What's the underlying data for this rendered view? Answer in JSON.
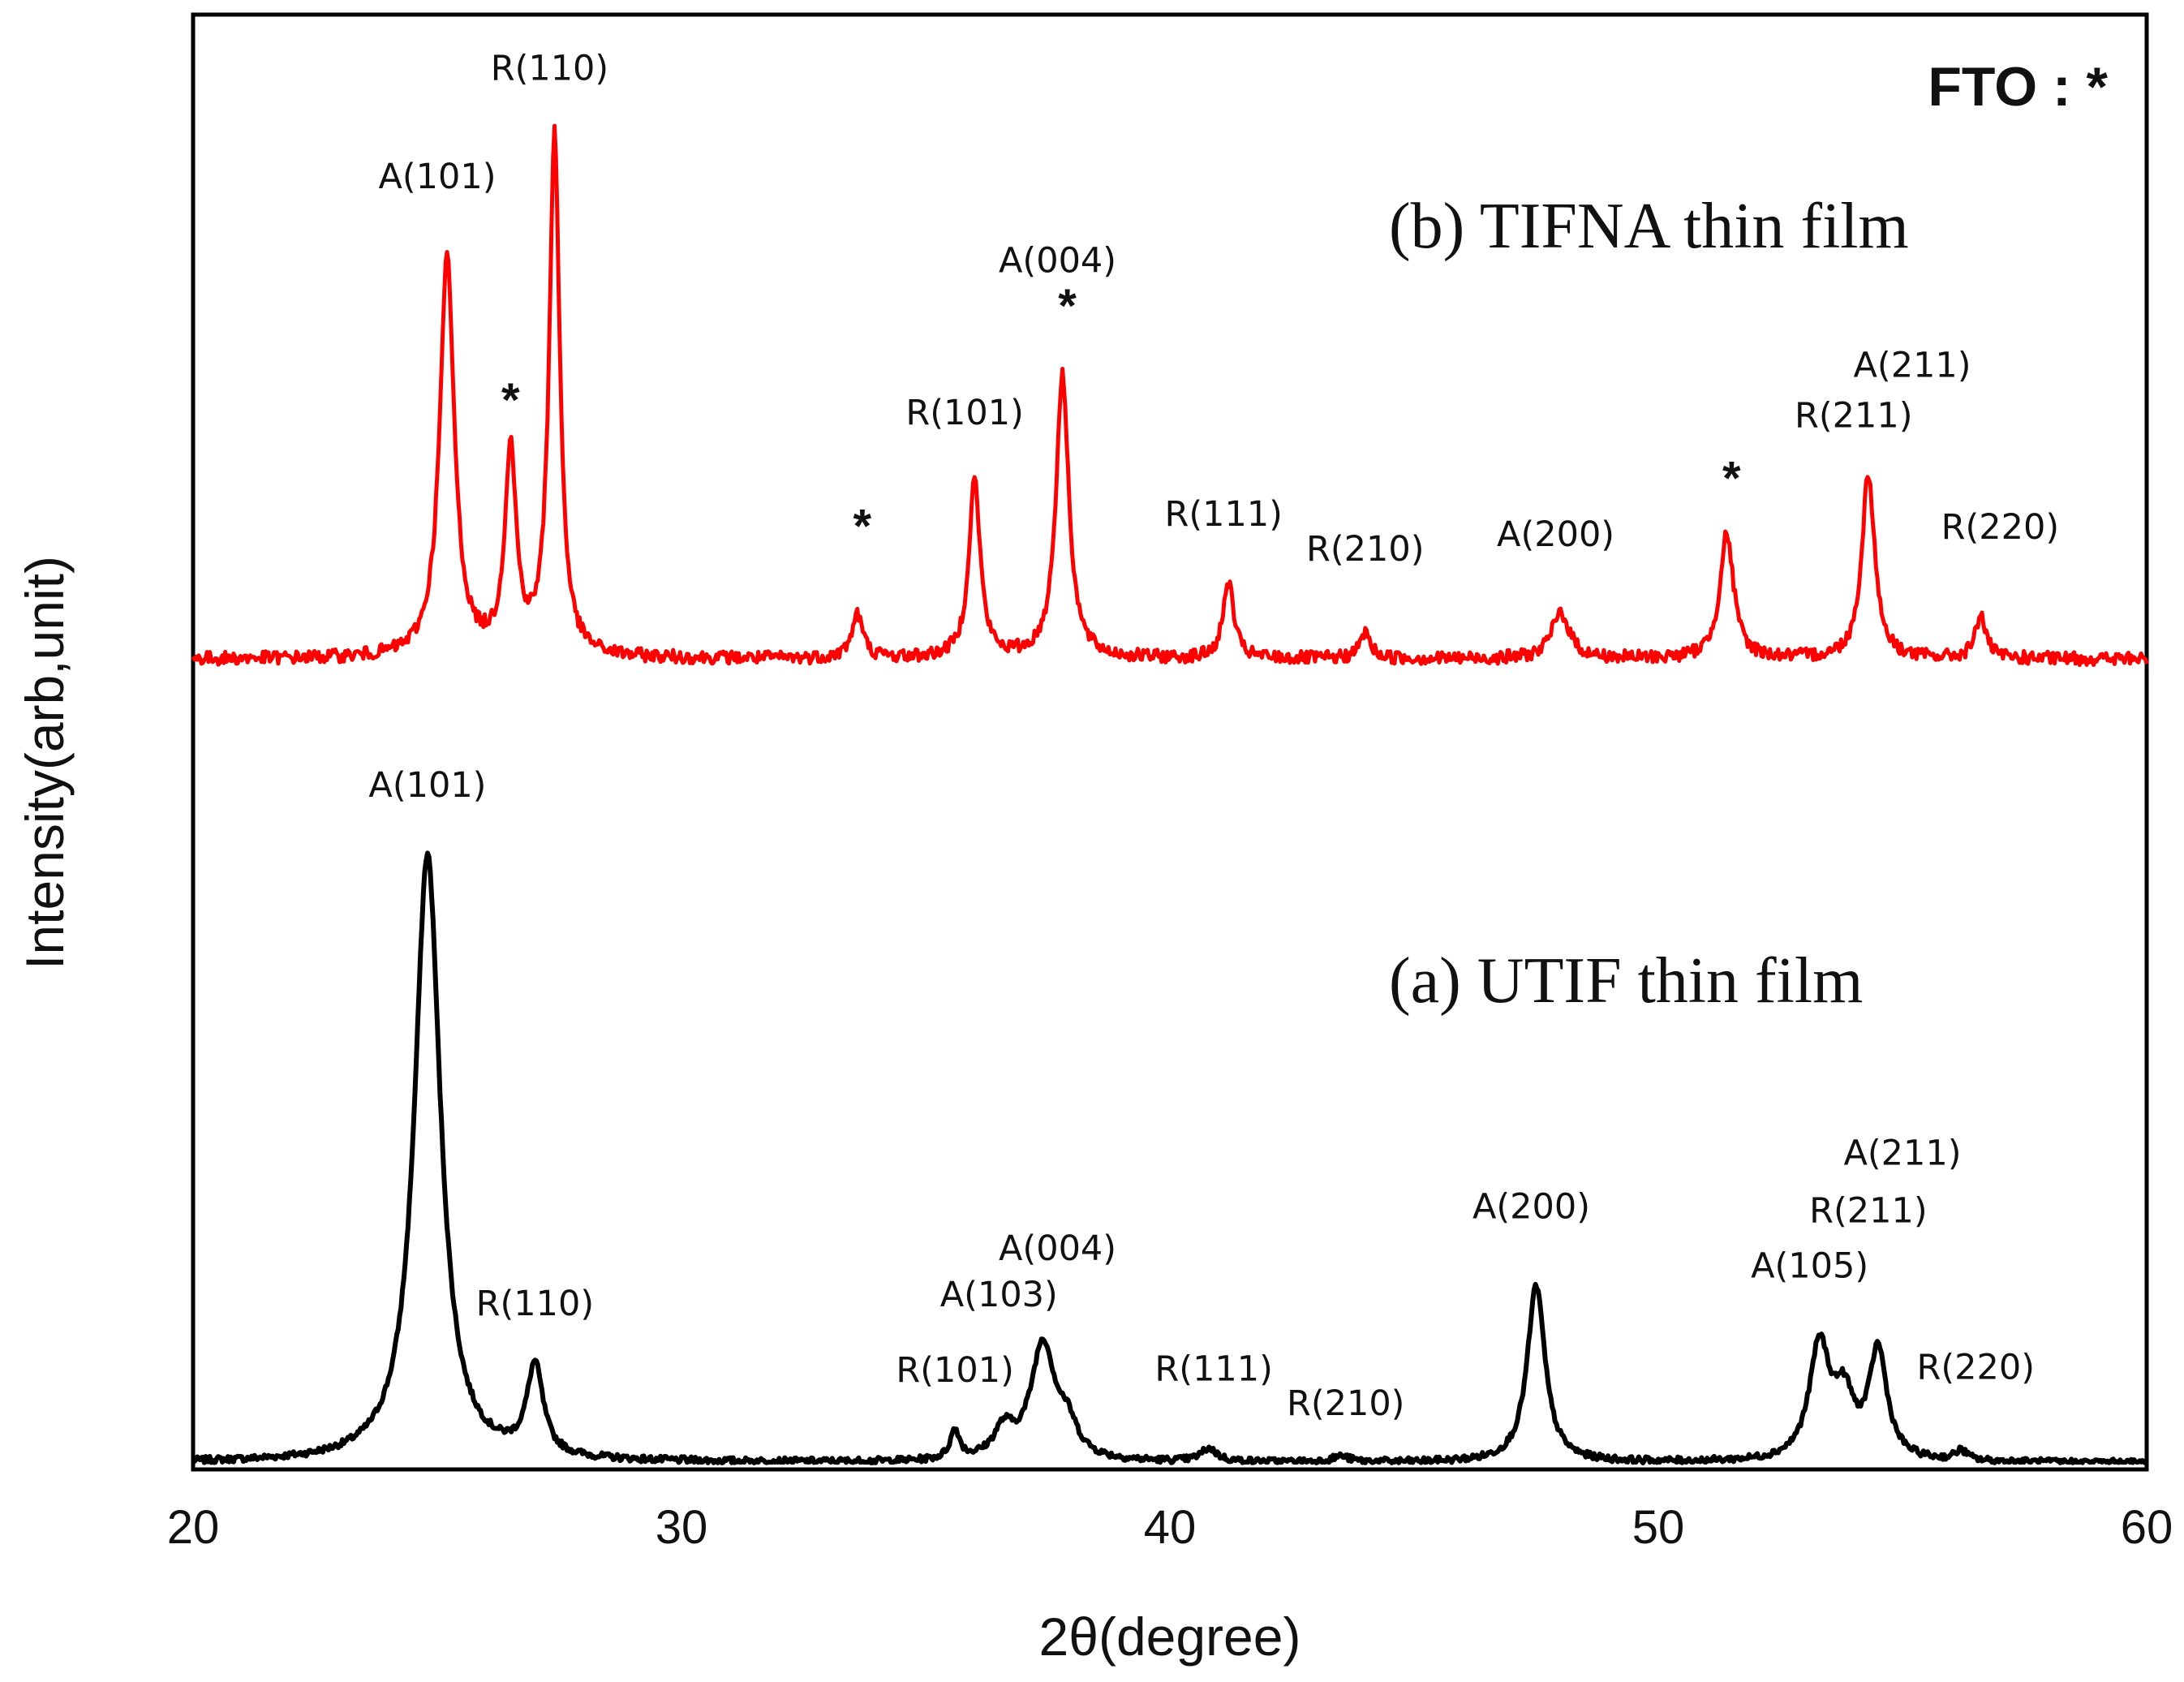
{
  "chart_data": {
    "type": "line",
    "title": "",
    "xlabel": "2θ(degree)",
    "ylabel": "Intensity(arb,unit)",
    "xlim": [
      20,
      60
    ],
    "ylim": [
      0,
      100
    ],
    "x_ticks": [
      "20",
      "30",
      "40",
      "50",
      "60"
    ],
    "legend_note": "FTO : *",
    "grid": false,
    "series": [
      {
        "name": "(a) UTIF thin film",
        "color": "#000000",
        "baseline": 0,
        "peaks": [
          {
            "x": 24.8,
            "height": 42.0,
            "width": 0.32
          },
          {
            "x": 27.0,
            "height": 6.2,
            "width": 0.2
          },
          {
            "x": 35.6,
            "height": 2.0,
            "width": 0.12
          },
          {
            "x": 36.6,
            "height": 2.0,
            "width": 0.25
          },
          {
            "x": 37.4,
            "height": 8.0,
            "width": 0.3
          },
          {
            "x": 37.9,
            "height": 2.0,
            "width": 0.25
          },
          {
            "x": 40.8,
            "height": 0.9,
            "width": 0.2
          },
          {
            "x": 43.5,
            "height": 0.4,
            "width": 0.2
          },
          {
            "x": 47.5,
            "height": 12.2,
            "width": 0.22
          },
          {
            "x": 53.3,
            "height": 7.8,
            "width": 0.25
          },
          {
            "x": 53.8,
            "height": 4.0,
            "width": 0.25
          },
          {
            "x": 54.5,
            "height": 7.5,
            "width": 0.22
          },
          {
            "x": 56.2,
            "height": 0.7,
            "width": 0.15
          }
        ]
      },
      {
        "name": "(b) TIFNA thin film",
        "color": "#ff0000",
        "baseline": 55.5,
        "peaks": [
          {
            "x": 25.2,
            "height": 27.5,
            "width": 0.18
          },
          {
            "x": 26.5,
            "height": 14.0,
            "width": 0.14
          },
          {
            "x": 27.4,
            "height": 36.0,
            "width": 0.13
          },
          {
            "x": 33.6,
            "height": 3.0,
            "width": 0.14
          },
          {
            "x": 36.0,
            "height": 12.3,
            "width": 0.14
          },
          {
            "x": 37.8,
            "height": 19.5,
            "width": 0.16
          },
          {
            "x": 41.2,
            "height": 5.3,
            "width": 0.13
          },
          {
            "x": 44.0,
            "height": 1.8,
            "width": 0.13
          },
          {
            "x": 48.0,
            "height": 3.2,
            "width": 0.22
          },
          {
            "x": 51.4,
            "height": 8.6,
            "width": 0.17
          },
          {
            "x": 54.3,
            "height": 12.8,
            "width": 0.16
          },
          {
            "x": 56.6,
            "height": 3.0,
            "width": 0.13
          }
        ]
      }
    ],
    "annotations": [
      {
        "text": "A(101)",
        "x": 24.8,
        "y": 46.0
      },
      {
        "text": "R(110)",
        "x": 27.0,
        "y": 10.2
      },
      {
        "text": "R(101)",
        "x": 35.6,
        "y": 5.6
      },
      {
        "text": "A(103)",
        "x": 36.5,
        "y": 10.8
      },
      {
        "text": "A(004)",
        "x": 37.7,
        "y": 14.0
      },
      {
        "text": "R(111)",
        "x": 40.9,
        "y": 5.7
      },
      {
        "text": "R(210)",
        "x": 43.6,
        "y": 3.3
      },
      {
        "text": "A(200)",
        "x": 47.4,
        "y": 16.9
      },
      {
        "text": "A(105)",
        "x": 53.1,
        "y": 12.8
      },
      {
        "text": "R(211)",
        "x": 54.3,
        "y": 16.6
      },
      {
        "text": "A(211)",
        "x": 55.0,
        "y": 20.6
      },
      {
        "text": "R(220)",
        "x": 56.5,
        "y": 5.8
      },
      {
        "text": "A(101)",
        "x": 25.0,
        "y": 88.0
      },
      {
        "text": "R(110)",
        "x": 27.3,
        "y": 95.5
      },
      {
        "text": "A(004)",
        "x": 37.7,
        "y": 82.2
      },
      {
        "text": "R(101)",
        "x": 35.8,
        "y": 71.7
      },
      {
        "text": "R(111)",
        "x": 41.1,
        "y": 64.7
      },
      {
        "text": "R(210)",
        "x": 44.0,
        "y": 62.3
      },
      {
        "text": "A(200)",
        "x": 47.9,
        "y": 63.3
      },
      {
        "text": "R(211)",
        "x": 54.0,
        "y": 71.5
      },
      {
        "text": "A(211)",
        "x": 55.2,
        "y": 75.0
      },
      {
        "text": "R(220)",
        "x": 57.0,
        "y": 63.8
      }
    ],
    "fto_markers": [
      {
        "text": "*",
        "x": 26.5,
        "y": 73.5
      },
      {
        "text": "*",
        "x": 33.7,
        "y": 64.8
      },
      {
        "text": "*",
        "x": 37.9,
        "y": 80.0
      },
      {
        "text": "*",
        "x": 51.5,
        "y": 68.1
      }
    ]
  }
}
